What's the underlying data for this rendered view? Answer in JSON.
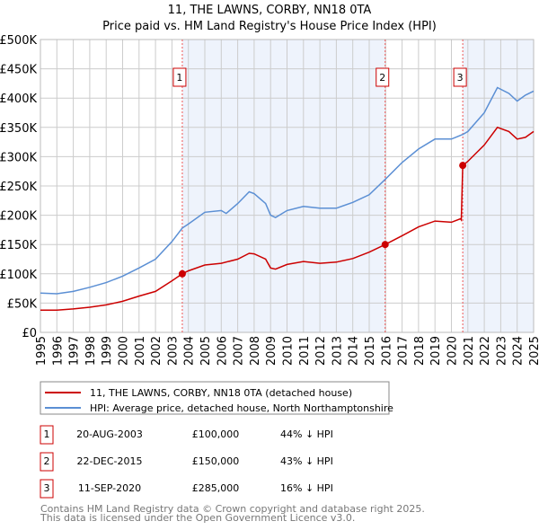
{
  "chart_data": {
    "type": "line",
    "title": "11, THE LAWNS, CORBY, NN18 0TA",
    "subtitle": "Price paid vs. HM Land Registry's House Price Index (HPI)",
    "xlabel": "",
    "ylabel": "",
    "xlim": [
      1995,
      2025
    ],
    "ylim": [
      0,
      500000
    ],
    "grid": true,
    "y_ticks": [
      0,
      50000,
      100000,
      150000,
      200000,
      250000,
      300000,
      350000,
      400000,
      450000,
      500000
    ],
    "y_tick_labels": [
      "£0",
      "£50K",
      "£100K",
      "£150K",
      "£200K",
      "£250K",
      "£300K",
      "£350K",
      "£400K",
      "£450K",
      "£500K"
    ],
    "x_ticks": [
      1995,
      1996,
      1997,
      1998,
      1999,
      2000,
      2001,
      2002,
      2003,
      2004,
      2005,
      2006,
      2007,
      2008,
      2009,
      2010,
      2011,
      2012,
      2013,
      2014,
      2015,
      2016,
      2017,
      2018,
      2019,
      2020,
      2021,
      2022,
      2023,
      2024,
      2025
    ],
    "x_tick_labels": [
      "1995",
      "1996",
      "1997",
      "1998",
      "1999",
      "2000",
      "2001",
      "2002",
      "2003",
      "2004",
      "2005",
      "2006",
      "2007",
      "2008",
      "2009",
      "2010",
      "2011",
      "2012",
      "2013",
      "2014",
      "2015",
      "2016",
      "2017",
      "2018",
      "2019",
      "2020",
      "2021",
      "2022",
      "2023",
      "2024",
      "2025"
    ],
    "series": [
      {
        "name": "11, THE LAWNS, CORBY, NN18 0TA (detached house)",
        "color": "#cc0000",
        "x": [
          1995,
          1996,
          1997,
          1998,
          1999,
          2000,
          2001,
          2002,
          2003,
          2003.63,
          2004,
          2005,
          2006,
          2007,
          2007.7,
          2008,
          2008.7,
          2009,
          2009.3,
          2010,
          2011,
          2012,
          2013,
          2014,
          2015,
          2015.97,
          2017,
          2018,
          2019,
          2020,
          2020.55,
          2020.6,
          2020.69,
          2021,
          2022,
          2022.8,
          2023.5,
          2024,
          2024.5,
          2025
        ],
        "y": [
          38000,
          38000,
          40000,
          43000,
          47000,
          53000,
          62000,
          70000,
          88000,
          100000,
          105000,
          115000,
          118000,
          125000,
          135000,
          134000,
          125000,
          110000,
          108000,
          116000,
          121000,
          118000,
          120000,
          126000,
          137000,
          150000,
          165000,
          180000,
          190000,
          188000,
          194000,
          192000,
          285000,
          292000,
          320000,
          350000,
          343000,
          330000,
          333000,
          343000
        ]
      },
      {
        "name": "HPI: Average price, detached house, North Northamptonshire",
        "color": "#5b8fd4",
        "x": [
          1995,
          1996,
          1997,
          1998,
          1999,
          2000,
          2001,
          2002,
          2003,
          2003.63,
          2004,
          2005,
          2006,
          2006.3,
          2007,
          2007.7,
          2008,
          2008.7,
          2009,
          2009.3,
          2010,
          2011,
          2012,
          2013,
          2014,
          2015,
          2016,
          2017,
          2018,
          2019,
          2020,
          2020.7,
          2021,
          2022,
          2022.8,
          2023.5,
          2024,
          2024.5,
          2025
        ],
        "y": [
          67000,
          66000,
          70000,
          77000,
          85000,
          96000,
          110000,
          125000,
          155000,
          178000,
          185000,
          205000,
          208000,
          203000,
          220000,
          240000,
          237000,
          220000,
          200000,
          196000,
          208000,
          215000,
          212000,
          212000,
          222000,
          235000,
          262000,
          290000,
          313000,
          330000,
          330000,
          338000,
          343000,
          375000,
          418000,
          408000,
          395000,
          405000,
          412000
        ]
      }
    ],
    "sales": [
      {
        "label": "1",
        "x": 2003.63,
        "date": "20-AUG-2003",
        "price": 100000,
        "price_text": "£100,000",
        "hpi_text": "44% ↓ HPI"
      },
      {
        "label": "2",
        "x": 2015.97,
        "date": "22-DEC-2015",
        "price": 150000,
        "price_text": "£150,000",
        "hpi_text": "43% ↓ HPI"
      },
      {
        "label": "3",
        "x": 2020.69,
        "date": "11-SEP-2020",
        "price": 285000,
        "price_text": "£285,000",
        "hpi_text": "16% ↓ HPI"
      }
    ],
    "legend": {
      "placement": "bottom",
      "entries": [
        "11, THE LAWNS, CORBY, NN18 0TA (detached house)",
        "HPI: Average price, detached house, North Northamptonshire"
      ]
    },
    "colors": {
      "price": "#cc0000",
      "hpi": "#5b8fd4",
      "shade": "#eef3fc",
      "grid": "#cccccc"
    }
  },
  "footer": {
    "line1": "Contains HM Land Registry data © Crown copyright and database right 2025.",
    "line2": "This data is licensed under the Open Government Licence v3.0."
  }
}
